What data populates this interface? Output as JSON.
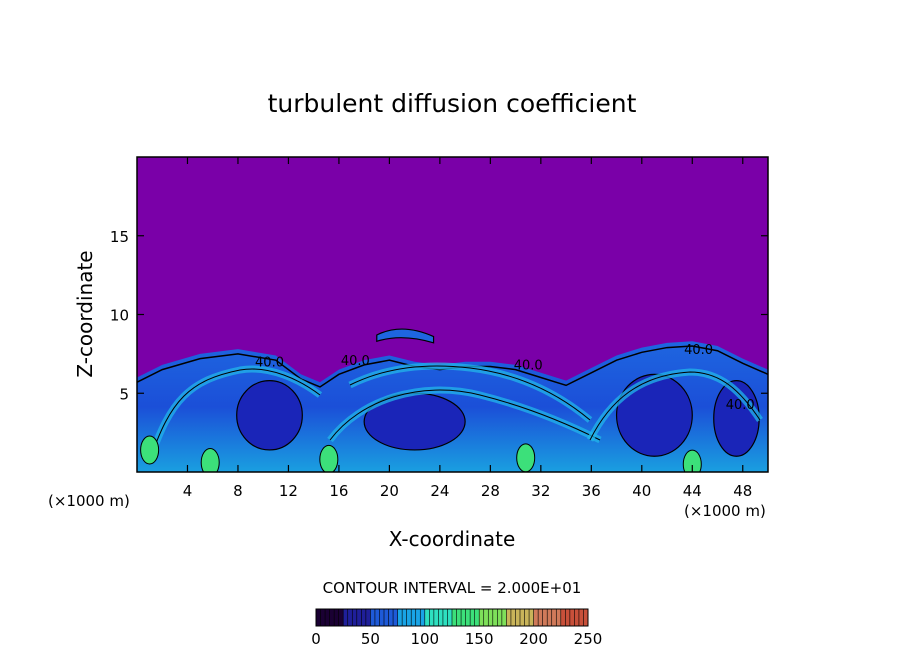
{
  "chart_data": {
    "type": "heatmap",
    "title": "turbulent diffusion coefficient",
    "xlabel": "X-coordinate",
    "ylabel": "Z-coordinate",
    "x_unit_left": "(×1000 m)",
    "x_unit_right": "(×1000 m)",
    "xlim": [
      0,
      50
    ],
    "ylim": [
      0,
      20
    ],
    "xticks": [
      "4",
      "8",
      "12",
      "16",
      "20",
      "24",
      "28",
      "32",
      "36",
      "40",
      "44",
      "48"
    ],
    "xtick_values": [
      4,
      8,
      12,
      16,
      20,
      24,
      28,
      32,
      36,
      40,
      44,
      48
    ],
    "yticks": [
      "5",
      "10",
      "15"
    ],
    "ytick_values": [
      5,
      10,
      15
    ],
    "contour_interval_text": "CONTOUR INTERVAL = 2.000E+01",
    "contour_interval": 20,
    "contour_labels": [
      {
        "text": "40.0",
        "x": 10.5,
        "z": 6.7
      },
      {
        "text": "40.0",
        "x": 17.3,
        "z": 6.8
      },
      {
        "text": "40.0",
        "x": 31.0,
        "z": 6.5
      },
      {
        "text": "40.0",
        "x": 44.5,
        "z": 7.5
      },
      {
        "text": "40.0",
        "x": 47.8,
        "z": 4.0
      }
    ],
    "turbulent_layer_top_profile": [
      [
        0,
        6.0
      ],
      [
        2,
        6.8
      ],
      [
        5,
        7.5
      ],
      [
        8,
        7.8
      ],
      [
        11,
        7.4
      ],
      [
        13,
        6.2
      ],
      [
        14.5,
        5.7
      ],
      [
        16,
        6.5
      ],
      [
        18,
        7.1
      ],
      [
        20,
        7.4
      ],
      [
        22,
        7.0
      ],
      [
        24,
        6.8
      ],
      [
        26,
        7.0
      ],
      [
        28,
        7.0
      ],
      [
        30,
        6.8
      ],
      [
        32,
        6.3
      ],
      [
        34,
        5.8
      ],
      [
        36,
        6.6
      ],
      [
        38,
        7.4
      ],
      [
        40,
        7.9
      ],
      [
        42,
        8.2
      ],
      [
        44,
        8.3
      ],
      [
        46,
        8.0
      ],
      [
        48,
        7.2
      ],
      [
        50,
        6.5
      ]
    ],
    "colorbar": {
      "min": 0,
      "max": 250,
      "tick_labels": [
        "0",
        "50",
        "100",
        "150",
        "200",
        "250"
      ],
      "tick_values": [
        0,
        50,
        100,
        150,
        200,
        250
      ],
      "colors": [
        "#1a0033",
        "#1f1f9a",
        "#1e5ad8",
        "#19a4e6",
        "#2ee0c0",
        "#3ce07a",
        "#7ee05a",
        "#c8b45a",
        "#d07a5a",
        "#c8503a"
      ]
    },
    "background_color": "#7a00a8",
    "field_base_color": "#1f3fd6"
  }
}
